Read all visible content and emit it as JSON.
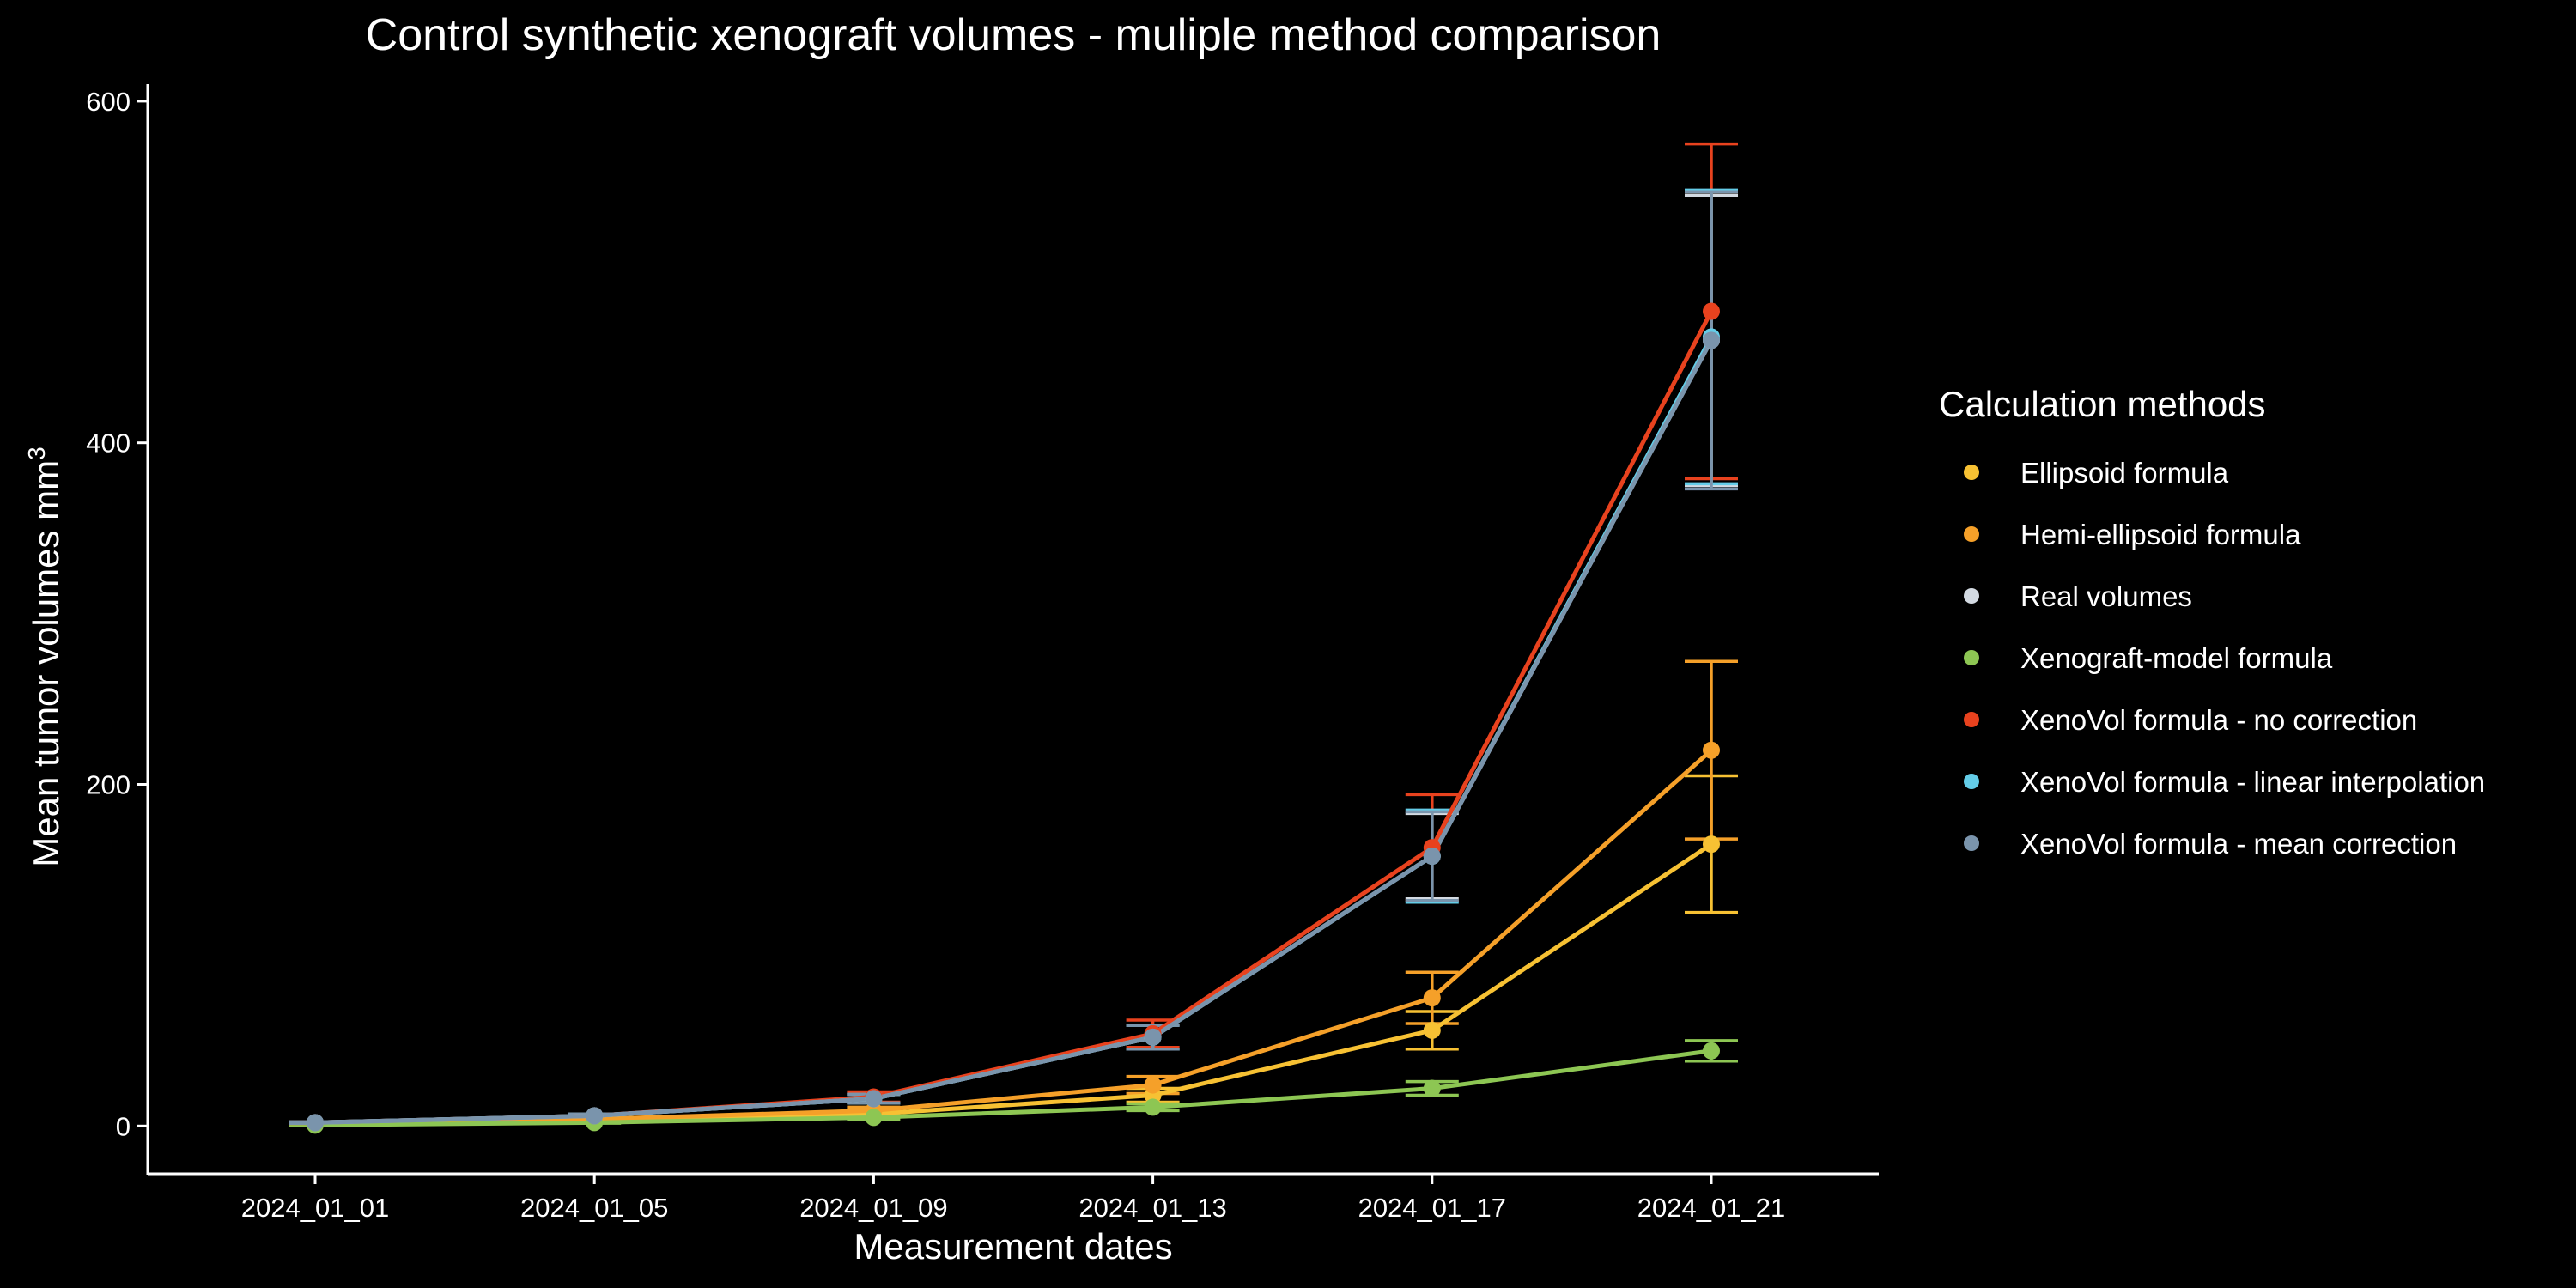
{
  "chart_data": {
    "type": "line",
    "title": "Control synthetic xenograft volumes - muliple method comparison",
    "xlabel": "Measurement dates",
    "ylabel": "Mean tumor volumes mm",
    "ylabel_superscript": "3",
    "categories": [
      "2024_01_01",
      "2024_01_05",
      "2024_01_09",
      "2024_01_13",
      "2024_01_17",
      "2024_01_21"
    ],
    "ylim": [
      -28,
      610
    ],
    "yticks": [
      0,
      200,
      400,
      600
    ],
    "grid": false,
    "legend": {
      "title": "Calculation methods",
      "position": "right"
    },
    "error_bars": true,
    "series": [
      {
        "name": "Ellipsoid formula",
        "color": "#F7C133",
        "values": [
          1,
          3,
          7,
          18,
          56,
          165
        ],
        "err": [
          0.3,
          0.6,
          1.5,
          4,
          11,
          40
        ]
      },
      {
        "name": "Hemi-ellipsoid formula",
        "color": "#F5A029",
        "values": [
          1.5,
          4,
          9,
          24,
          75,
          220
        ],
        "err": [
          0.4,
          0.8,
          2,
          5,
          15,
          52
        ]
      },
      {
        "name": "Real volumes",
        "color": "#D3DAE2",
        "values": [
          2,
          6,
          16,
          52,
          158,
          460
        ],
        "err": [
          0.4,
          1,
          2.5,
          7,
          25,
          85
        ]
      },
      {
        "name": "Xenograft-model formula",
        "color": "#8DC653",
        "values": [
          0.5,
          2,
          5,
          11,
          22,
          44
        ],
        "err": [
          0.2,
          0.4,
          1,
          2,
          4,
          6
        ]
      },
      {
        "name": "XenoVol formula - no correction",
        "color": "#E8421E",
        "values": [
          2,
          6,
          17,
          54,
          163,
          477
        ],
        "err": [
          0.5,
          1,
          3,
          8,
          31,
          98
        ]
      },
      {
        "name": "XenoVol formula - linear interpolation",
        "color": "#64CDE8",
        "values": [
          2,
          6,
          16,
          52,
          158,
          462
        ],
        "err": [
          0.4,
          1,
          2.5,
          7,
          27,
          86
        ]
      },
      {
        "name": "XenoVol formula - mean correction",
        "color": "#7A94AC",
        "values": [
          2,
          6,
          16,
          52,
          158,
          460
        ],
        "err": [
          0.4,
          1,
          2.5,
          7,
          26,
          87
        ]
      }
    ]
  }
}
